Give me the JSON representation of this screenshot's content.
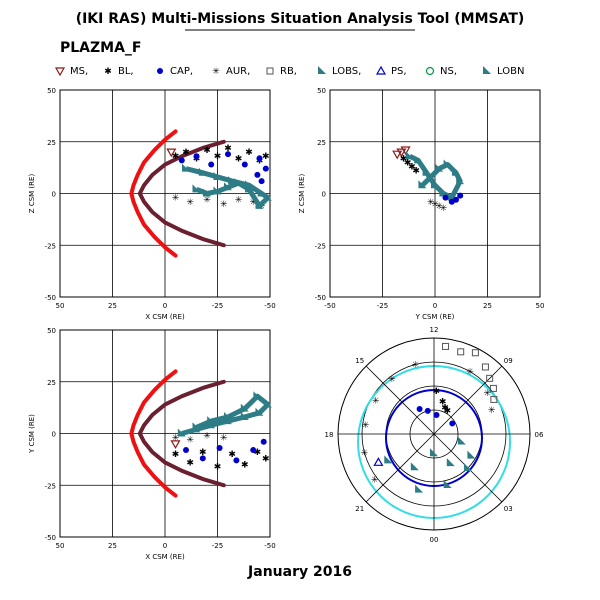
{
  "title": "(IKI RAS) Multi-Missions Situation Analysis Tool (MMSAT)",
  "mission": "PLAZMA_F",
  "footer": "January 2016",
  "legend": [
    {
      "label": "MS,",
      "marker": "triangle-down",
      "color": "#8b1a1a"
    },
    {
      "label": "BL,",
      "marker": "star",
      "color": "#f2e600"
    },
    {
      "label": "CAP,",
      "marker": "circle-filled",
      "color": "#0000cc"
    },
    {
      "label": "AUR,",
      "marker": "asterisk",
      "color": "#33dde8"
    },
    {
      "label": "RB,",
      "marker": "square-open",
      "color": "#555555"
    },
    {
      "label": "LOBS,",
      "marker": "flag",
      "color": "#2e7d86"
    },
    {
      "label": "PS,",
      "marker": "triangle-open",
      "color": "#0000cc"
    },
    {
      "label": "NS,",
      "marker": "circle-open",
      "color": "#009944"
    },
    {
      "label": "LOBN",
      "marker": "flag",
      "color": "#2e7d86"
    }
  ],
  "colors": {
    "magnetopause": "#6b2030",
    "bow_shock": "#ee1111",
    "grid": "#000000"
  },
  "chart_data": [
    {
      "type": "scatter",
      "panel": "XZ",
      "xlabel": "X CSM (RE)",
      "ylabel": "Z CSM (RE)",
      "xlim": [
        50,
        -50
      ],
      "ylim": [
        -50,
        50
      ],
      "xticks": [
        "50",
        "25",
        "0",
        "-25",
        "-50"
      ],
      "yticks": [
        "-50",
        "-25",
        "0",
        "25",
        "50"
      ],
      "grid": true,
      "boundaries": [
        {
          "name": "magnetopause",
          "x": [
            -28,
            -18,
            -8,
            0,
            6,
            10,
            12,
            10,
            6,
            0,
            -8,
            -18,
            -28
          ],
          "y": [
            25,
            22,
            18,
            14,
            9,
            4,
            0,
            -4,
            -9,
            -14,
            -18,
            -22,
            -25
          ]
        },
        {
          "name": "bow_shock",
          "x": [
            -5,
            0,
            5,
            10,
            13,
            15,
            16,
            15,
            13,
            10,
            5,
            0,
            -5
          ],
          "y": [
            30,
            26,
            21,
            15,
            9,
            4,
            0,
            -4,
            -9,
            -15,
            -21,
            -26,
            -30
          ]
        }
      ],
      "series": [
        {
          "name": "BL",
          "x": [
            -5,
            -10,
            -15,
            -20,
            -25,
            -30,
            -35,
            -40,
            -45,
            -48
          ],
          "y": [
            18,
            20,
            17,
            21,
            18,
            22,
            17,
            20,
            16,
            18
          ]
        },
        {
          "name": "CAP",
          "x": [
            -8,
            -15,
            -22,
            -30,
            -38,
            -45,
            -48,
            -44,
            -46
          ],
          "y": [
            16,
            18,
            14,
            19,
            14,
            17,
            12,
            9,
            6
          ]
        },
        {
          "name": "AUR",
          "x": [
            -5,
            -12,
            -20,
            -28,
            -35,
            -42,
            -46
          ],
          "y": [
            -2,
            -4,
            -3,
            -5,
            -3,
            -4,
            -6
          ]
        },
        {
          "name": "LOBS",
          "x": [
            -10,
            -18,
            -25,
            -32,
            -40,
            -46,
            -49,
            -45,
            -40,
            -35,
            -30,
            -25,
            -20,
            -15
          ],
          "y": [
            12,
            10,
            8,
            6,
            4,
            0,
            -2,
            -6,
            2,
            5,
            3,
            1,
            0,
            2
          ]
        },
        {
          "name": "MS",
          "x": [
            -3
          ],
          "y": [
            20
          ]
        }
      ]
    },
    {
      "type": "scatter",
      "panel": "YZ",
      "xlabel": "Y CSM (RE)",
      "ylabel": "Z CSM (RE)",
      "xlim": [
        -50,
        50
      ],
      "ylim": [
        -50,
        50
      ],
      "xticks": [
        "-50",
        "-25",
        "0",
        "25",
        "50"
      ],
      "yticks": [
        "-50",
        "-25",
        "0",
        "25",
        "50"
      ],
      "grid": true,
      "series": [
        {
          "name": "MS",
          "x": [
            -18,
            -16,
            -14
          ],
          "y": [
            19,
            20,
            21
          ]
        },
        {
          "name": "BL",
          "x": [
            -15,
            -13,
            -11,
            -9
          ],
          "y": [
            17,
            15,
            13,
            11
          ]
        },
        {
          "name": "LOBS",
          "x": [
            -12,
            -8,
            -4,
            0,
            4,
            8,
            12,
            10,
            6,
            2,
            -2,
            -6
          ],
          "y": [
            18,
            16,
            10,
            4,
            0,
            -2,
            6,
            10,
            14,
            12,
            8,
            4
          ]
        },
        {
          "name": "CAP",
          "x": [
            5,
            8,
            10,
            12
          ],
          "y": [
            -2,
            -4,
            -3,
            -1
          ]
        },
        {
          "name": "AUR",
          "x": [
            -2,
            0,
            2,
            4
          ],
          "y": [
            -4,
            -5,
            -6,
            -7
          ]
        }
      ]
    },
    {
      "type": "scatter",
      "panel": "XY",
      "xlabel": "X CSM (RE)",
      "ylabel": "Y CSM (RE)",
      "xlim": [
        50,
        -50
      ],
      "ylim": [
        -50,
        50
      ],
      "xticks": [
        "50",
        "25",
        "0",
        "-25",
        "-50"
      ],
      "yticks": [
        "-50",
        "-25",
        "0",
        "25",
        "50"
      ],
      "grid": true,
      "boundaries": [
        {
          "name": "magnetopause",
          "x": [
            -28,
            -18,
            -8,
            0,
            6,
            10,
            12,
            10,
            6,
            0,
            -8,
            -18,
            -28
          ],
          "y": [
            -25,
            -22,
            -18,
            -14,
            -9,
            -4,
            0,
            4,
            9,
            14,
            18,
            22,
            25
          ]
        },
        {
          "name": "bow_shock",
          "x": [
            -5,
            0,
            5,
            10,
            13,
            15,
            16,
            15,
            13,
            10,
            5,
            0,
            -5
          ],
          "y": [
            -30,
            -26,
            -21,
            -15,
            -9,
            -4,
            0,
            4,
            9,
            15,
            21,
            26,
            30
          ]
        }
      ],
      "series": [
        {
          "name": "BL",
          "x": [
            -5,
            -12,
            -18,
            -25,
            -32,
            -38,
            -44,
            -48
          ],
          "y": [
            -10,
            -14,
            -9,
            -16,
            -10,
            -15,
            -9,
            -12
          ]
        },
        {
          "name": "CAP",
          "x": [
            -10,
            -18,
            -26,
            -34,
            -42,
            -47
          ],
          "y": [
            -8,
            -12,
            -7,
            -13,
            -8,
            -4
          ]
        },
        {
          "name": "LOBS",
          "x": [
            -8,
            -15,
            -22,
            -30,
            -38,
            -45,
            -49,
            -44,
            -38,
            -30,
            -22,
            -15
          ],
          "y": [
            0,
            2,
            4,
            6,
            8,
            10,
            14,
            18,
            12,
            8,
            6,
            3
          ]
        },
        {
          "name": "AUR",
          "x": [
            -5,
            -12,
            -20,
            -28
          ],
          "y": [
            -2,
            -3,
            -1,
            -2
          ]
        },
        {
          "name": "MS",
          "x": [
            -5
          ],
          "y": [
            -5
          ]
        }
      ]
    },
    {
      "type": "polar",
      "panel": "MLT",
      "hour_labels": [
        "12",
        "15",
        "18",
        "21",
        "00",
        "03",
        "06",
        "09"
      ],
      "series": [
        {
          "name": "RB",
          "mlt": [
            11.5,
            10.8,
            10.2,
            9.5,
            9.0,
            8.5,
            8.0
          ],
          "r": [
            0.92,
            0.9,
            0.95,
            0.88,
            0.82,
            0.78,
            0.72
          ]
        },
        {
          "name": "AUR",
          "mlt": [
            13,
            14.5,
            16,
            17.5,
            19,
            20.5,
            10,
            8.5,
            7.5
          ],
          "r": [
            0.75,
            0.72,
            0.7,
            0.72,
            0.75,
            0.78,
            0.75,
            0.7,
            0.65
          ]
        },
        {
          "name": "BL",
          "mlt": [
            11.8,
            11,
            10.5,
            10
          ],
          "r": [
            0.45,
            0.35,
            0.3,
            0.28
          ]
        },
        {
          "name": "CAP",
          "mlt": [
            11.5,
            13,
            14,
            8
          ],
          "r": [
            0.2,
            0.25,
            0.3,
            0.22
          ]
        },
        {
          "name": "LOBS",
          "mlt": [
            0,
            22,
            2,
            4,
            20,
            23,
            1,
            3,
            5
          ],
          "r": [
            0.2,
            0.4,
            0.35,
            0.45,
            0.55,
            0.6,
            0.55,
            0.5,
            0.3
          ]
        },
        {
          "name": "PS",
          "mlt": [
            19.8
          ],
          "r": [
            0.65
          ]
        }
      ]
    }
  ]
}
